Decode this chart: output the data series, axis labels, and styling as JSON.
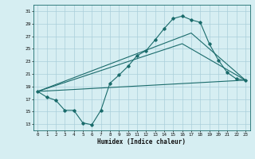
{
  "title": "",
  "xlabel": "Humidex (Indice chaleur)",
  "ylabel": "",
  "bg_color": "#d6eef2",
  "grid_color": "#aacfda",
  "line_color": "#1a6b6b",
  "xlim": [
    -0.5,
    23.5
  ],
  "ylim": [
    12,
    32
  ],
  "yticks": [
    13,
    15,
    17,
    19,
    21,
    23,
    25,
    27,
    29,
    31
  ],
  "xticks": [
    0,
    1,
    2,
    3,
    4,
    5,
    6,
    7,
    8,
    9,
    10,
    11,
    12,
    13,
    14,
    15,
    16,
    17,
    18,
    19,
    20,
    21,
    22,
    23
  ],
  "line1_x": [
    0,
    1,
    2,
    3,
    4,
    5,
    6,
    7,
    8,
    9,
    10,
    11,
    12,
    13,
    14,
    15,
    16,
    17,
    18,
    19,
    20,
    21,
    22,
    23
  ],
  "line1_y": [
    18.2,
    17.3,
    16.8,
    15.2,
    15.2,
    13.2,
    12.9,
    15.2,
    19.5,
    20.8,
    22.2,
    23.9,
    24.7,
    26.4,
    28.2,
    29.8,
    30.2,
    29.6,
    29.2,
    25.8,
    23.2,
    21.2,
    20.2,
    20.0
  ],
  "line2_x": [
    0,
    23
  ],
  "line2_y": [
    18.2,
    20.0
  ],
  "line3_x": [
    0,
    17,
    23
  ],
  "line3_y": [
    18.2,
    27.5,
    20.0
  ],
  "line4_x": [
    0,
    16,
    23
  ],
  "line4_y": [
    18.2,
    25.8,
    20.0
  ]
}
